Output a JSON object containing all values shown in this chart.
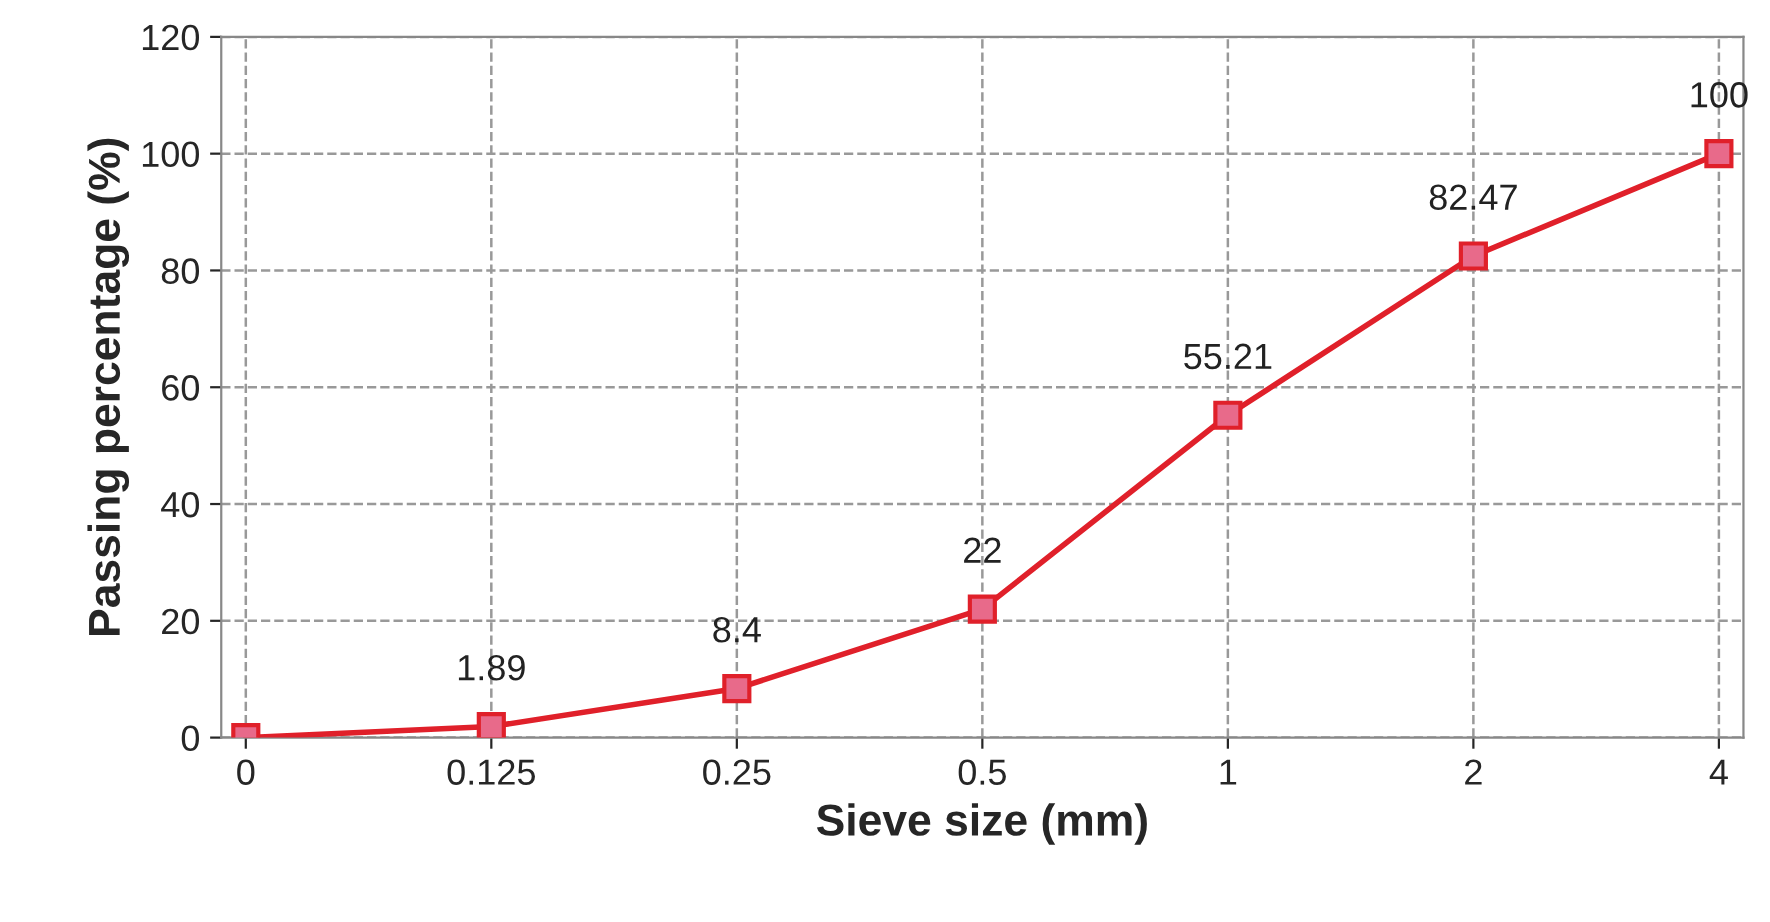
{
  "chart_data": {
    "type": "line",
    "xlabel": "Sieve size (mm)",
    "ylabel": "Passing percentage (%)",
    "categories": [
      "0",
      "0.125",
      "0.25",
      "0.5",
      "1",
      "2",
      "4"
    ],
    "series": [
      {
        "color": "#e0202a",
        "values": [
          0,
          1.89,
          8.4,
          22,
          55.21,
          82.47,
          100
        ],
        "value_labels": [
          null,
          "1.89",
          "8.4",
          "22",
          "55.21",
          "82.47",
          "100"
        ]
      }
    ],
    "ylim": [
      0,
      120
    ],
    "yticks": [
      0,
      20,
      40,
      60,
      80,
      100,
      120
    ],
    "grid": true,
    "marker": "square",
    "line_style": "solid"
  }
}
